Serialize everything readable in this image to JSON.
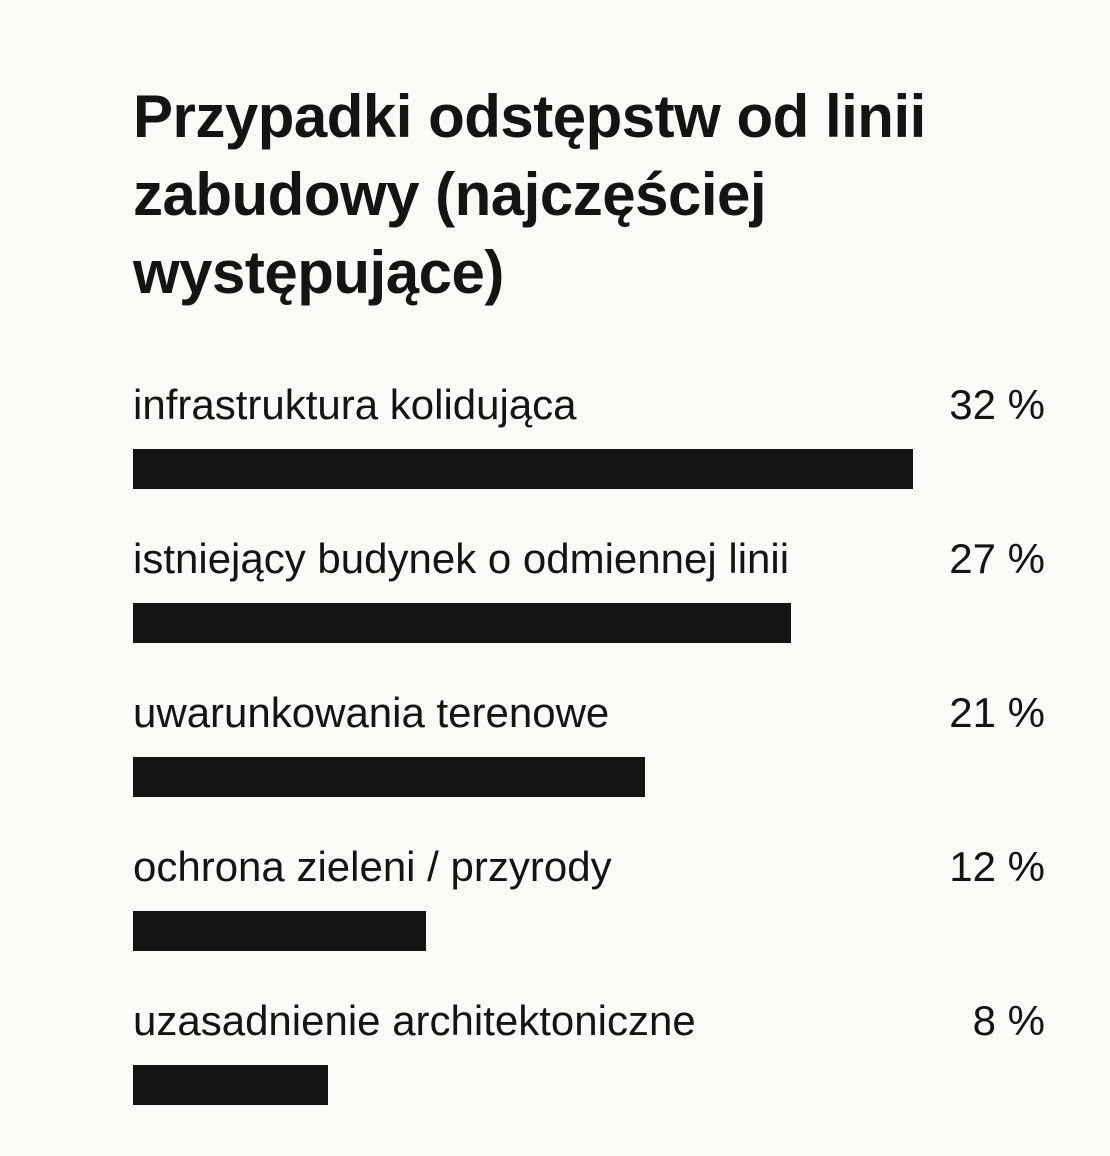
{
  "chart_data": {
    "type": "bar",
    "orientation": "horizontal",
    "title": "Przypadki odstępstw od linii zabudowy (najczęściej występujące)",
    "categories": [
      "infrastruktura kolidująca",
      "istniejący budynek o odmiennej linii",
      "uwarunkowania terenowe",
      "ochrona zieleni / przyrody",
      "uzasadnienie architektoniczne"
    ],
    "values": [
      32,
      27,
      21,
      12,
      8
    ],
    "value_labels": [
      "32 %",
      "27 %",
      "21 %",
      "12 %",
      "8 %"
    ],
    "unit": "%",
    "xlim": [
      0,
      32
    ],
    "bar_color": "#141414",
    "grid": false,
    "legend": "none"
  }
}
